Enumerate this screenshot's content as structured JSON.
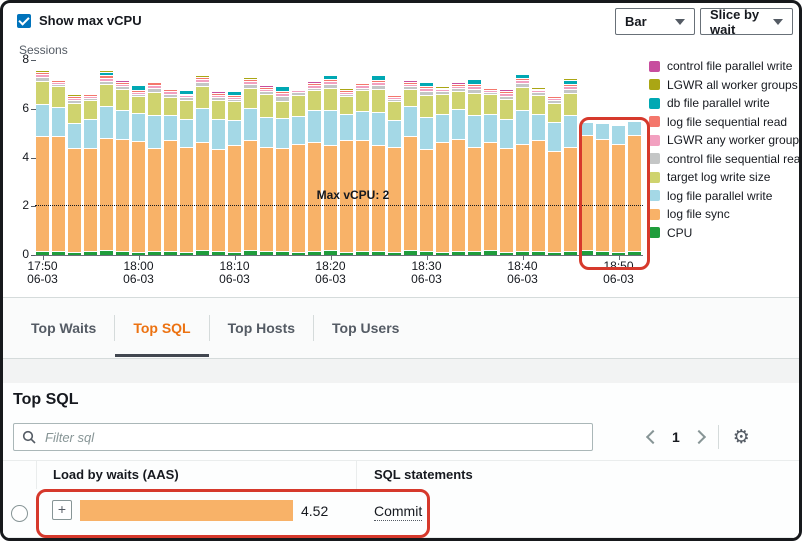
{
  "toolbar": {
    "show_max_vcpu_label": "Show max vCPU",
    "chart_type_value": "Bar",
    "slice_by_value": "Slice by wait"
  },
  "chart_data": {
    "type": "bar",
    "stacked": true,
    "title": "",
    "ylabel": "Sessions",
    "ylim": [
      0,
      8
    ],
    "yticks": [
      0,
      2,
      4,
      6,
      8
    ],
    "annotation": {
      "label": "Max vCPU: 2",
      "value": 2
    },
    "legend_position": "right",
    "x_ticks": [
      {
        "index": 0,
        "time": "17:50",
        "date": "06-03"
      },
      {
        "index": 6,
        "time": "18:00",
        "date": "06-03"
      },
      {
        "index": 12,
        "time": "18:10",
        "date": "06-03"
      },
      {
        "index": 18,
        "time": "18:20",
        "date": "06-03"
      },
      {
        "index": 24,
        "time": "18:30",
        "date": "06-03"
      },
      {
        "index": 30,
        "time": "18:40",
        "date": "06-03"
      },
      {
        "index": 36,
        "time": "18:50",
        "date": "06-03"
      }
    ],
    "highlighted_bar_range": [
      34,
      37
    ],
    "series": [
      {
        "name": "CPU",
        "color": "#1f9d3c",
        "values": [
          0.15,
          0.18,
          0.12,
          0.15,
          0.2,
          0.15,
          0.12,
          0.18,
          0.15,
          0.12,
          0.2,
          0.15,
          0.12,
          0.22,
          0.15,
          0.18,
          0.12,
          0.15,
          0.2,
          0.12,
          0.15,
          0.18,
          0.12,
          0.2,
          0.15,
          0.12,
          0.18,
          0.15,
          0.2,
          0.12,
          0.15,
          0.18,
          0.12,
          0.15,
          0.22,
          0.15,
          0.12,
          0.18
        ]
      },
      {
        "name": "log file sync",
        "color": "#f8b268",
        "values": [
          4.75,
          4.7,
          4.25,
          4.25,
          4.6,
          4.6,
          4.55,
          4.2,
          4.55,
          4.3,
          4.45,
          4.2,
          4.4,
          4.5,
          4.3,
          4.2,
          4.45,
          4.5,
          4.3,
          4.6,
          4.55,
          4.35,
          4.3,
          4.7,
          4.2,
          4.5,
          4.6,
          4.3,
          4.45,
          4.25,
          4.4,
          4.55,
          4.15,
          4.3,
          4.7,
          4.6,
          4.45,
          4.75
        ]
      },
      {
        "name": "log file parallel write",
        "color": "#a4d8e6",
        "values": [
          1.3,
          1.2,
          1.05,
          1.2,
          1.3,
          1.2,
          1.15,
          1.35,
          1.05,
          1.15,
          1.4,
          1.25,
          1.0,
          1.3,
          1.2,
          1.25,
          1.15,
          1.3,
          1.45,
          1.05,
          1.2,
          1.35,
          1.1,
          1.2,
          1.3,
          1.15,
          1.2,
          1.3,
          1.15,
          1.2,
          1.4,
          1.05,
          1.2,
          1.3,
          0.55,
          0.65,
          0.75,
          0.55
        ]
      },
      {
        "name": "target log write size",
        "color": "#cfd36e",
        "values": [
          0.95,
          0.85,
          0.8,
          0.75,
          0.9,
          0.85,
          0.7,
          0.95,
          0.75,
          0.8,
          0.9,
          0.75,
          0.8,
          0.85,
          0.95,
          0.7,
          0.85,
          0.8,
          0.9,
          0.75,
          0.85,
          0.95,
          0.8,
          0.7,
          0.9,
          0.85,
          0.75,
          0.9,
          0.8,
          0.85,
          0.95,
          0.8,
          0.75,
          0.9,
          0,
          0,
          0,
          0
        ]
      },
      {
        "name": "control file sequential read",
        "color": "#c4c6c6",
        "values": [
          0.15,
          0.1,
          0.12,
          0.1,
          0.15,
          0.12,
          0.1,
          0.18,
          0.12,
          0.1,
          0.15,
          0.12,
          0.1,
          0.15,
          0.12,
          0.18,
          0.1,
          0.12,
          0.15,
          0.1,
          0.12,
          0.15,
          0.1,
          0.12,
          0.18,
          0.1,
          0.12,
          0.15,
          0.1,
          0.12,
          0.15,
          0.1,
          0.12,
          0.15,
          0,
          0,
          0,
          0
        ]
      },
      {
        "name": "LGWR any worker group",
        "color": "#f2a0c0",
        "values": [
          0.12,
          0.08,
          0.1,
          0.08,
          0.12,
          0.1,
          0.08,
          0.12,
          0.1,
          0.08,
          0.12,
          0.1,
          0.08,
          0.12,
          0.1,
          0.12,
          0.08,
          0.1,
          0.12,
          0.08,
          0.1,
          0.12,
          0.08,
          0.1,
          0.12,
          0.08,
          0.1,
          0.12,
          0.08,
          0.1,
          0.12,
          0.08,
          0.1,
          0.12,
          0,
          0,
          0,
          0
        ]
      },
      {
        "name": "log file sequential read",
        "color": "#f4776c",
        "values": [
          0.1,
          0.06,
          0.08,
          0.06,
          0.1,
          0.08,
          0.06,
          0.1,
          0.08,
          0.06,
          0.1,
          0.08,
          0.06,
          0.1,
          0.08,
          0.1,
          0.06,
          0.08,
          0.1,
          0.06,
          0.08,
          0.1,
          0.06,
          0.08,
          0.1,
          0.06,
          0.08,
          0.1,
          0.06,
          0.08,
          0.1,
          0.06,
          0.08,
          0.1,
          0,
          0,
          0,
          0
        ]
      },
      {
        "name": "db file parallel write",
        "color": "#00a8b3",
        "values": [
          0,
          0,
          0,
          0,
          0.15,
          0,
          0.2,
          0,
          0,
          0.18,
          0,
          0,
          0.15,
          0,
          0,
          0.2,
          0,
          0,
          0.15,
          0,
          0,
          0.18,
          0,
          0,
          0.15,
          0,
          0,
          0.2,
          0,
          0,
          0.15,
          0,
          0,
          0.18,
          0,
          0,
          0,
          0
        ]
      },
      {
        "name": "LGWR all worker groups",
        "color": "#aaa614",
        "values": [
          0.05,
          0,
          0.08,
          0,
          0.05,
          0,
          0,
          0.08,
          0,
          0,
          0.05,
          0,
          0,
          0.08,
          0,
          0,
          0.05,
          0,
          0,
          0.08,
          0,
          0,
          0.05,
          0,
          0,
          0.08,
          0,
          0,
          0.05,
          0,
          0,
          0.08,
          0,
          0.05,
          0,
          0,
          0,
          0
        ]
      },
      {
        "name": "control file parallel write",
        "color": "#c74d9e",
        "values": [
          0.08,
          0,
          0,
          0.06,
          0,
          0.08,
          0,
          0,
          0.06,
          0,
          0,
          0.08,
          0,
          0,
          0.06,
          0,
          0,
          0.08,
          0,
          0,
          0.06,
          0,
          0,
          0.08,
          0,
          0,
          0.06,
          0,
          0,
          0.08,
          0,
          0,
          0.06,
          0,
          0,
          0,
          0,
          0
        ]
      }
    ]
  },
  "tabs": [
    {
      "label": "Top Waits",
      "active": false
    },
    {
      "label": "Top SQL",
      "active": true
    },
    {
      "label": "Top Hosts",
      "active": false
    },
    {
      "label": "Top Users",
      "active": false
    }
  ],
  "top_sql": {
    "heading": "Top SQL",
    "filter_placeholder": "Filter sql",
    "pagination": {
      "page": "1"
    },
    "table": {
      "columns": [
        "Load by waits (AAS)",
        "SQL statements"
      ],
      "rows": [
        {
          "load_aas": "4.52",
          "sql": "Commit"
        }
      ]
    }
  },
  "colors": {
    "checkbox_blue": "#0073bb",
    "tab_active_orange": "#ec7211",
    "highlight_red": "#d6392c",
    "axis_line": "#687078",
    "row_bar_orange": "#f8b268",
    "next_row_bar_blue": "#a6d4e8"
  }
}
